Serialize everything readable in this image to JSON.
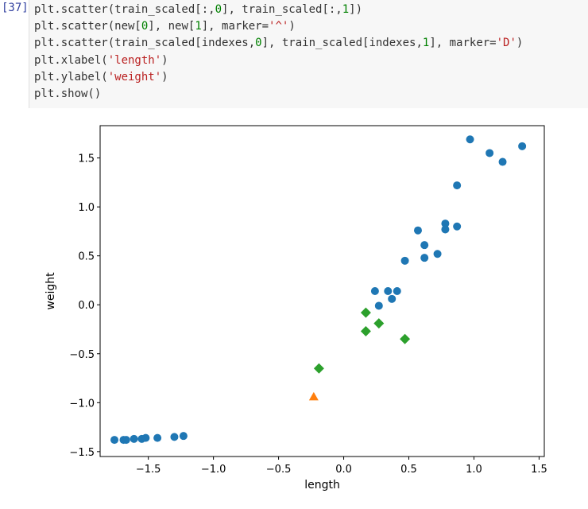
{
  "cell": {
    "prompt": "[37]",
    "code_lines": [
      [
        {
          "t": "plt.scatter(train_scaled[:,",
          "c": ""
        },
        {
          "t": "0",
          "c": "num"
        },
        {
          "t": "], train_scaled[:,",
          "c": ""
        },
        {
          "t": "1",
          "c": "num"
        },
        {
          "t": "])",
          "c": ""
        }
      ],
      [
        {
          "t": "plt.scatter(new[",
          "c": ""
        },
        {
          "t": "0",
          "c": "num"
        },
        {
          "t": "], new[",
          "c": ""
        },
        {
          "t": "1",
          "c": "num"
        },
        {
          "t": "], marker=",
          "c": ""
        },
        {
          "t": "'^'",
          "c": "str"
        },
        {
          "t": ")",
          "c": ""
        }
      ],
      [
        {
          "t": "plt.scatter(train_scaled[indexes,",
          "c": ""
        },
        {
          "t": "0",
          "c": "num"
        },
        {
          "t": "], train_scaled[indexes,",
          "c": ""
        },
        {
          "t": "1",
          "c": "num"
        },
        {
          "t": "], marker=",
          "c": ""
        },
        {
          "t": "'D'",
          "c": "str"
        },
        {
          "t": ")",
          "c": ""
        }
      ],
      [
        {
          "t": "plt.xlabel(",
          "c": ""
        },
        {
          "t": "'length'",
          "c": "str"
        },
        {
          "t": ")",
          "c": ""
        }
      ],
      [
        {
          "t": "plt.ylabel(",
          "c": ""
        },
        {
          "t": "'weight'",
          "c": "str"
        },
        {
          "t": ")",
          "c": ""
        }
      ],
      [
        {
          "t": "plt.show()",
          "c": ""
        }
      ]
    ]
  },
  "chart_data": {
    "type": "scatter",
    "xlabel": "length",
    "ylabel": "weight",
    "xlim": [
      -1.87,
      1.54
    ],
    "ylim": [
      -1.55,
      1.83
    ],
    "xticks": [
      -1.5,
      -1.0,
      -0.5,
      0.0,
      0.5,
      1.0,
      1.5
    ],
    "xtick_labels": [
      "−1.5",
      "−1.0",
      "−0.5",
      "0.0",
      "0.5",
      "1.0",
      "1.5"
    ],
    "yticks": [
      -1.5,
      -1.0,
      -0.5,
      0.0,
      0.5,
      1.0,
      1.5
    ],
    "ytick_labels": [
      "−1.5",
      "−1.0",
      "−0.5",
      "0.0",
      "0.5",
      "1.0",
      "1.5"
    ],
    "grid": false,
    "series": [
      {
        "marker": "circle",
        "color": "#1f77b4",
        "points": [
          [
            0.97,
            1.69
          ],
          [
            1.37,
            1.62
          ],
          [
            1.12,
            1.55
          ],
          [
            1.22,
            1.46
          ],
          [
            0.87,
            1.22
          ],
          [
            0.57,
            0.76
          ],
          [
            0.78,
            0.83
          ],
          [
            0.78,
            0.77
          ],
          [
            0.87,
            0.8
          ],
          [
            0.62,
            0.61
          ],
          [
            0.72,
            0.52
          ],
          [
            0.62,
            0.48
          ],
          [
            0.47,
            0.45
          ],
          [
            0.24,
            0.14
          ],
          [
            0.34,
            0.14
          ],
          [
            0.41,
            0.14
          ],
          [
            0.37,
            0.06
          ],
          [
            0.27,
            -0.01
          ],
          [
            -1.76,
            -1.38
          ],
          [
            -1.69,
            -1.38
          ],
          [
            -1.67,
            -1.38
          ],
          [
            -1.61,
            -1.37
          ],
          [
            -1.55,
            -1.37
          ],
          [
            -1.52,
            -1.36
          ],
          [
            -1.43,
            -1.36
          ],
          [
            -1.3,
            -1.35
          ],
          [
            -1.23,
            -1.34
          ]
        ]
      },
      {
        "marker": "triangle",
        "color": "#ff7f0e",
        "points": [
          [
            -0.23,
            -0.94
          ]
        ]
      },
      {
        "marker": "diamond",
        "color": "#2ca02c",
        "points": [
          [
            0.17,
            -0.08
          ],
          [
            0.27,
            -0.19
          ],
          [
            0.17,
            -0.27
          ],
          [
            0.47,
            -0.35
          ],
          [
            -0.19,
            -0.65
          ]
        ]
      }
    ]
  }
}
